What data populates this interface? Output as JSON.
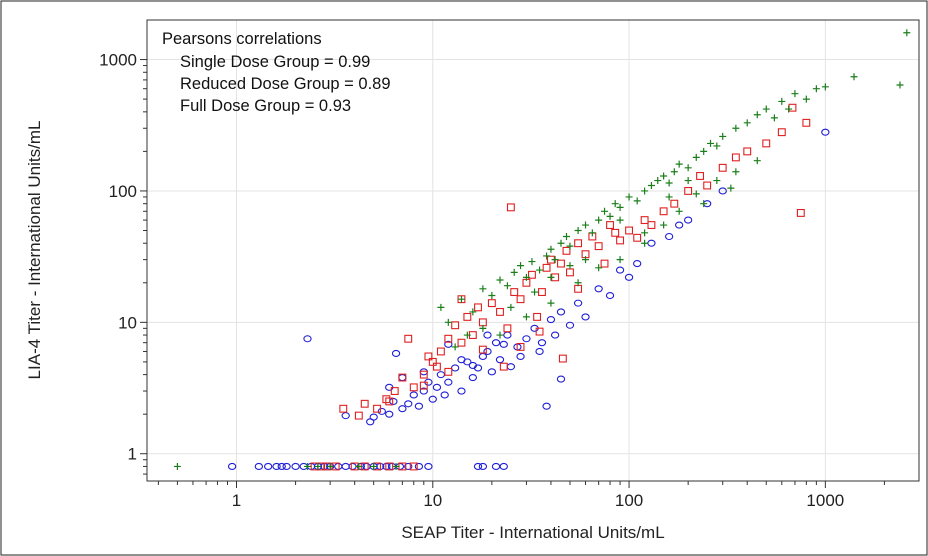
{
  "chart_data": {
    "type": "scatter",
    "xlabel": "SEAP Titer - International Units/mL",
    "ylabel": "LIA-4 Titer - International Units/mL",
    "xscale": "log",
    "yscale": "log",
    "xlim": [
      0.35,
      3000
    ],
    "ylim": [
      0.62,
      2000
    ],
    "x_ticks": [
      1,
      10,
      100,
      1000
    ],
    "x_tick_labels": [
      "1",
      "10",
      "100",
      "1000"
    ],
    "y_ticks": [
      1,
      10,
      100,
      1000
    ],
    "y_tick_labels": [
      "1",
      "10",
      "100",
      "1000"
    ],
    "grid": true,
    "annotation": {
      "title": "Pearsons correlations",
      "lines": [
        "Single Dose Group = 0.99",
        "Reduced Dose Group = 0.89",
        "Full Dose Group = 0.93"
      ],
      "placement": "top-left"
    },
    "series": [
      {
        "marker": "circle",
        "color": "#1f1fd6",
        "points": [
          [
            0.95,
            0.8
          ],
          [
            1.3,
            0.8
          ],
          [
            1.45,
            0.8
          ],
          [
            1.6,
            0.8
          ],
          [
            1.7,
            0.8
          ],
          [
            1.8,
            0.8
          ],
          [
            2.0,
            0.8
          ],
          [
            2.2,
            0.8
          ],
          [
            2.4,
            0.8
          ],
          [
            2.6,
            0.8
          ],
          [
            2.8,
            0.8
          ],
          [
            3.0,
            0.8
          ],
          [
            3.3,
            0.8
          ],
          [
            3.6,
            0.8
          ],
          [
            3.9,
            0.8
          ],
          [
            4.3,
            0.8
          ],
          [
            4.6,
            0.8
          ],
          [
            5.0,
            0.8
          ],
          [
            5.4,
            0.8
          ],
          [
            5.8,
            0.8
          ],
          [
            6.2,
            0.8
          ],
          [
            6.8,
            0.8
          ],
          [
            7.5,
            0.8
          ],
          [
            8.5,
            0.8
          ],
          [
            9.5,
            0.8
          ],
          [
            17,
            0.8
          ],
          [
            18,
            0.8
          ],
          [
            21,
            0.8
          ],
          [
            23,
            0.8
          ],
          [
            2.3,
            7.5
          ],
          [
            3.6,
            1.95
          ],
          [
            4.8,
            1.75
          ],
          [
            5.0,
            1.9
          ],
          [
            5.5,
            2.1
          ],
          [
            6.0,
            2.0
          ],
          [
            6.3,
            2.5
          ],
          [
            7.0,
            2.2
          ],
          [
            7.5,
            2.4
          ],
          [
            8.0,
            2.8
          ],
          [
            8.5,
            2.3
          ],
          [
            9.0,
            3.0
          ],
          [
            9.5,
            3.5
          ],
          [
            10,
            2.6
          ],
          [
            10.5,
            3.2
          ],
          [
            11,
            4.0
          ],
          [
            11.5,
            2.8
          ],
          [
            12,
            3.5
          ],
          [
            13,
            4.5
          ],
          [
            14,
            3.0
          ],
          [
            15,
            5.0
          ],
          [
            16,
            3.8
          ],
          [
            17,
            4.5
          ],
          [
            18,
            5.5
          ],
          [
            19,
            6.0
          ],
          [
            20,
            4.2
          ],
          [
            21,
            7.0
          ],
          [
            22,
            5.2
          ],
          [
            24,
            8.0
          ],
          [
            25,
            4.6
          ],
          [
            27,
            6.5
          ],
          [
            30,
            7.5
          ],
          [
            33,
            9.0
          ],
          [
            35,
            6.0
          ],
          [
            38,
            2.3
          ],
          [
            40,
            10.5
          ],
          [
            42,
            8.0
          ],
          [
            45,
            3.7
          ],
          [
            45,
            12.0
          ],
          [
            50,
            9.5
          ],
          [
            55,
            14
          ],
          [
            60,
            11
          ],
          [
            70,
            18
          ],
          [
            80,
            16
          ],
          [
            90,
            25
          ],
          [
            100,
            22
          ],
          [
            110,
            28
          ],
          [
            130,
            40
          ],
          [
            160,
            45
          ],
          [
            180,
            55
          ],
          [
            200,
            60
          ],
          [
            250,
            80
          ],
          [
            300,
            100
          ],
          [
            1000,
            280
          ],
          [
            6.0,
            3.2
          ],
          [
            7.0,
            3.8
          ],
          [
            9.0,
            4.2
          ],
          [
            12,
            6.8
          ],
          [
            14,
            5.2
          ],
          [
            16,
            4.7
          ],
          [
            19,
            8.0
          ],
          [
            23,
            6.8
          ],
          [
            28,
            5.5
          ],
          [
            36,
            7.0
          ],
          [
            6.5,
            5.8
          ]
        ]
      },
      {
        "marker": "square",
        "color": "#e02020",
        "points": [
          [
            2.5,
            0.8
          ],
          [
            2.7,
            0.8
          ],
          [
            2.9,
            0.8
          ],
          [
            3.2,
            0.8
          ],
          [
            4.0,
            0.8
          ],
          [
            4.5,
            0.8
          ],
          [
            5.2,
            0.8
          ],
          [
            6.0,
            0.8
          ],
          [
            7.0,
            0.8
          ],
          [
            8.0,
            0.8
          ],
          [
            3.5,
            2.2
          ],
          [
            4.2,
            1.95
          ],
          [
            4.5,
            2.4
          ],
          [
            5.2,
            2.2
          ],
          [
            5.8,
            2.6
          ],
          [
            6.4,
            3.0
          ],
          [
            7.0,
            3.8
          ],
          [
            7.5,
            7.5
          ],
          [
            8.0,
            3.2
          ],
          [
            9.0,
            4.0
          ],
          [
            9.5,
            5.5
          ],
          [
            10,
            5.0
          ],
          [
            10.5,
            4.6
          ],
          [
            11,
            6.0
          ],
          [
            12,
            7.5
          ],
          [
            13,
            9.5
          ],
          [
            14,
            15
          ],
          [
            15,
            11
          ],
          [
            16,
            8.0
          ],
          [
            17,
            13
          ],
          [
            18,
            10
          ],
          [
            20,
            14
          ],
          [
            22,
            12
          ],
          [
            24,
            9.0
          ],
          [
            25,
            75
          ],
          [
            26,
            17
          ],
          [
            28,
            15
          ],
          [
            30,
            20
          ],
          [
            32,
            23
          ],
          [
            34,
            11
          ],
          [
            36,
            17
          ],
          [
            38,
            26
          ],
          [
            40,
            30
          ],
          [
            42,
            22
          ],
          [
            45,
            28
          ],
          [
            48,
            35
          ],
          [
            50,
            24
          ],
          [
            55,
            40
          ],
          [
            60,
            33
          ],
          [
            65,
            45
          ],
          [
            70,
            38
          ],
          [
            75,
            28
          ],
          [
            80,
            55
          ],
          [
            85,
            48
          ],
          [
            90,
            42
          ],
          [
            100,
            50
          ],
          [
            110,
            44
          ],
          [
            120,
            60
          ],
          [
            130,
            55
          ],
          [
            150,
            70
          ],
          [
            170,
            80
          ],
          [
            200,
            100
          ],
          [
            230,
            130
          ],
          [
            250,
            110
          ],
          [
            300,
            150
          ],
          [
            350,
            180
          ],
          [
            400,
            200
          ],
          [
            500,
            230
          ],
          [
            600,
            280
          ],
          [
            680,
            430
          ],
          [
            750,
            68
          ],
          [
            800,
            330
          ],
          [
            35,
            8.5
          ],
          [
            46,
            5.3
          ],
          [
            55,
            18
          ],
          [
            23,
            4.6
          ],
          [
            28,
            6.5
          ],
          [
            18,
            6.2
          ],
          [
            14,
            7.0
          ],
          [
            9.0,
            3.3
          ],
          [
            6.0,
            2.5
          ],
          [
            12,
            4.2
          ]
        ]
      },
      {
        "marker": "plus",
        "color": "#1a7f1a",
        "points": [
          [
            0.5,
            0.8
          ],
          [
            2.3,
            0.8
          ],
          [
            2.6,
            0.8
          ],
          [
            3.0,
            0.8
          ],
          [
            4.2,
            0.8
          ],
          [
            5.0,
            0.8
          ],
          [
            6.5,
            0.8
          ],
          [
            11,
            13
          ],
          [
            12,
            10
          ],
          [
            14,
            15
          ],
          [
            16,
            12
          ],
          [
            18,
            18
          ],
          [
            20,
            16
          ],
          [
            22,
            21
          ],
          [
            24,
            19
          ],
          [
            26,
            24
          ],
          [
            28,
            27
          ],
          [
            30,
            22
          ],
          [
            32,
            29
          ],
          [
            35,
            25
          ],
          [
            38,
            32
          ],
          [
            40,
            36
          ],
          [
            42,
            30
          ],
          [
            45,
            40
          ],
          [
            48,
            45
          ],
          [
            50,
            38
          ],
          [
            55,
            50
          ],
          [
            60,
            55
          ],
          [
            65,
            48
          ],
          [
            70,
            60
          ],
          [
            75,
            70
          ],
          [
            80,
            64
          ],
          [
            85,
            80
          ],
          [
            90,
            75
          ],
          [
            100,
            90
          ],
          [
            110,
            84
          ],
          [
            120,
            100
          ],
          [
            130,
            110
          ],
          [
            140,
            120
          ],
          [
            150,
            130
          ],
          [
            160,
            115
          ],
          [
            170,
            140
          ],
          [
            180,
            160
          ],
          [
            200,
            150
          ],
          [
            220,
            180
          ],
          [
            240,
            200
          ],
          [
            260,
            230
          ],
          [
            280,
            220
          ],
          [
            300,
            260
          ],
          [
            350,
            300
          ],
          [
            400,
            330
          ],
          [
            450,
            380
          ],
          [
            500,
            420
          ],
          [
            550,
            360
          ],
          [
            600,
            480
          ],
          [
            650,
            420
          ],
          [
            700,
            550
          ],
          [
            800,
            500
          ],
          [
            900,
            600
          ],
          [
            1000,
            620
          ],
          [
            1400,
            740
          ],
          [
            2400,
            640
          ],
          [
            2600,
            1600
          ],
          [
            22,
            8.0
          ],
          [
            30,
            11
          ],
          [
            40,
            14
          ],
          [
            55,
            20
          ],
          [
            70,
            26
          ],
          [
            90,
            30
          ],
          [
            120,
            40
          ],
          [
            150,
            55
          ],
          [
            180,
            70
          ],
          [
            220,
            95
          ],
          [
            280,
            120
          ],
          [
            350,
            140
          ],
          [
            120,
            48
          ],
          [
            90,
            60
          ],
          [
            60,
            30
          ],
          [
            160,
            90
          ],
          [
            200,
            120
          ],
          [
            240,
            80
          ],
          [
            330,
            105
          ],
          [
            450,
            170
          ],
          [
            40,
            22
          ],
          [
            50,
            27
          ],
          [
            33,
            17
          ],
          [
            25,
            13
          ],
          [
            18,
            9.0
          ],
          [
            15,
            8.0
          ],
          [
            13,
            6.5
          ]
        ]
      }
    ]
  }
}
